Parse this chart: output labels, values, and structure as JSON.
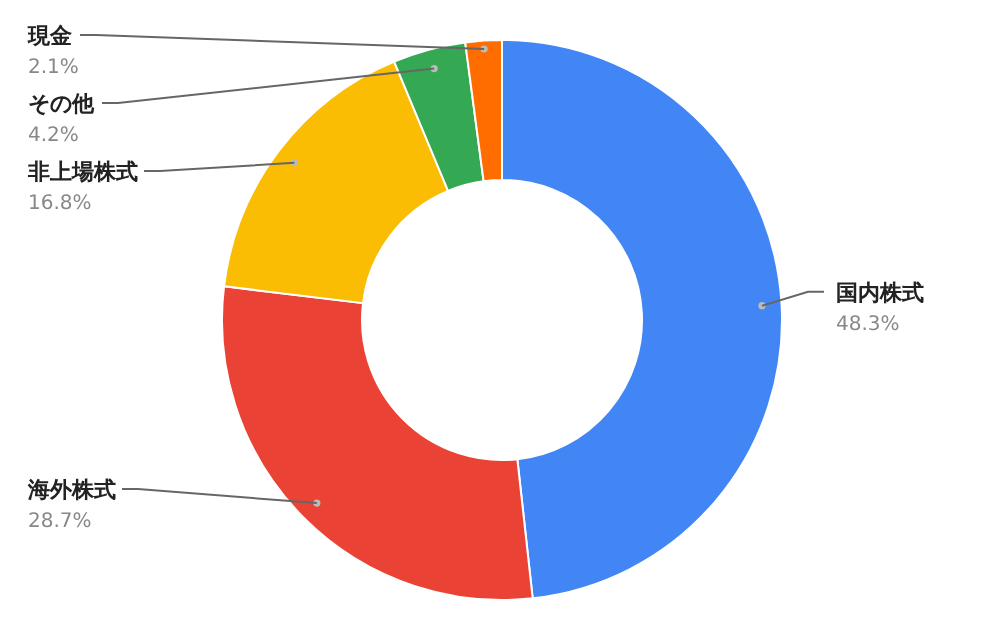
{
  "chart_data": {
    "type": "donut",
    "categories": [
      "国内株式",
      "海外株式",
      "非上場株式",
      "その他",
      "現金"
    ],
    "values": [
      48.3,
      28.7,
      16.8,
      4.2,
      2.1
    ],
    "colors": [
      "#4285f4",
      "#ea4335",
      "#fbbc04",
      "#34a853",
      "#ff6d01"
    ],
    "value_labels": [
      "48.3%",
      "28.7%",
      "16.8%",
      "4.2%",
      "2.1%"
    ],
    "legend": false
  }
}
